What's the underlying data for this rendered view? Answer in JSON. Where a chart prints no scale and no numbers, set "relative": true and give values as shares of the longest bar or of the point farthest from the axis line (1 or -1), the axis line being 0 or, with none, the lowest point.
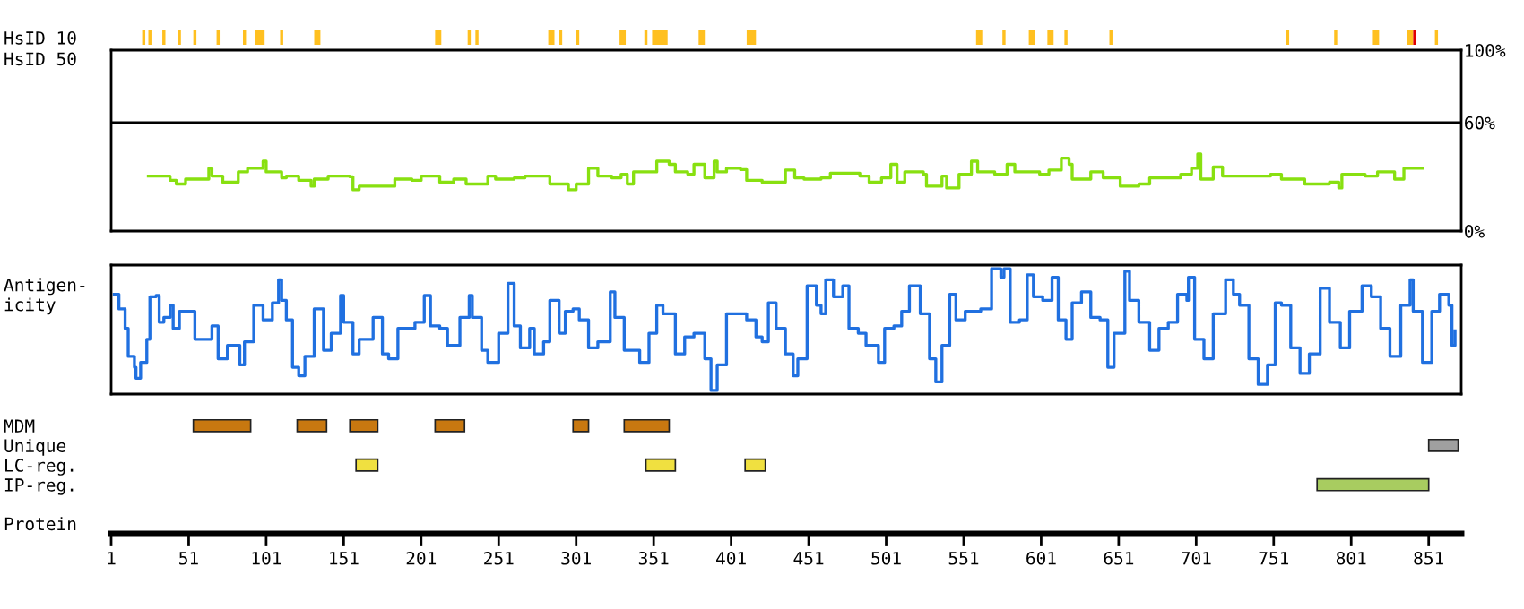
{
  "chart_data": [
    {
      "type": "bar",
      "orientation": "horizontal",
      "xlim": [
        1,
        872
      ],
      "categories": [
        "HsID 10"
      ],
      "series": [
        {
          "base": [
            21
          ],
          "values": [
            2
          ],
          "colors": [
            "#ffc020"
          ]
        },
        {
          "base": [
            25
          ],
          "values": [
            2
          ],
          "colors": [
            "#ffc020"
          ]
        },
        {
          "base": [
            34
          ],
          "values": [
            2
          ],
          "colors": [
            "#ffc020"
          ]
        },
        {
          "base": [
            44
          ],
          "values": [
            2
          ],
          "colors": [
            "#ffc020"
          ]
        },
        {
          "base": [
            54
          ],
          "values": [
            2
          ],
          "colors": [
            "#ffc020"
          ]
        },
        {
          "base": [
            69
          ],
          "values": [
            2
          ],
          "colors": [
            "#ffc020"
          ]
        },
        {
          "base": [
            86
          ],
          "values": [
            2
          ],
          "colors": [
            "#ffc020"
          ]
        },
        {
          "base": [
            94
          ],
          "values": [
            6
          ],
          "colors": [
            "#ffc020"
          ]
        },
        {
          "base": [
            110
          ],
          "values": [
            2
          ],
          "colors": [
            "#ffc020"
          ]
        },
        {
          "base": [
            132
          ],
          "values": [
            4
          ],
          "colors": [
            "#ffc020"
          ]
        },
        {
          "base": [
            210
          ],
          "values": [
            4
          ],
          "colors": [
            "#ffc020"
          ]
        },
        {
          "base": [
            231
          ],
          "values": [
            2
          ],
          "colors": [
            "#ffc020"
          ]
        },
        {
          "base": [
            236
          ],
          "values": [
            2
          ],
          "colors": [
            "#ffc020"
          ]
        },
        {
          "base": [
            283
          ],
          "values": [
            4
          ],
          "colors": [
            "#ffc020"
          ]
        },
        {
          "base": [
            290
          ],
          "values": [
            2
          ],
          "colors": [
            "#ffc020"
          ]
        },
        {
          "base": [
            301
          ],
          "values": [
            2
          ],
          "colors": [
            "#ffc020"
          ]
        },
        {
          "base": [
            329
          ],
          "values": [
            4
          ],
          "colors": [
            "#ffc020"
          ]
        },
        {
          "base": [
            345
          ],
          "values": [
            2
          ],
          "colors": [
            "#ffc020"
          ]
        },
        {
          "base": [
            350
          ],
          "values": [
            10
          ],
          "colors": [
            "#ffc020"
          ]
        },
        {
          "base": [
            380
          ],
          "values": [
            4
          ],
          "colors": [
            "#ffc020"
          ]
        },
        {
          "base": [
            411
          ],
          "values": [
            6
          ],
          "colors": [
            "#ffc020"
          ]
        },
        {
          "base": [
            559
          ],
          "values": [
            4
          ],
          "colors": [
            "#ffc020"
          ]
        },
        {
          "base": [
            576
          ],
          "values": [
            2
          ],
          "colors": [
            "#ffc020"
          ]
        },
        {
          "base": [
            593
          ],
          "values": [
            4
          ],
          "colors": [
            "#ffc020"
          ]
        },
        {
          "base": [
            605
          ],
          "values": [
            4
          ],
          "colors": [
            "#ffc020"
          ]
        },
        {
          "base": [
            616
          ],
          "values": [
            2
          ],
          "colors": [
            "#ffc020"
          ]
        },
        {
          "base": [
            645
          ],
          "values": [
            2
          ],
          "colors": [
            "#ffc020"
          ]
        },
        {
          "base": [
            759
          ],
          "values": [
            2
          ],
          "colors": [
            "#ffc020"
          ]
        },
        {
          "base": [
            790
          ],
          "values": [
            2
          ],
          "colors": [
            "#ffc020"
          ]
        },
        {
          "base": [
            815
          ],
          "values": [
            4
          ],
          "colors": [
            "#ffc020"
          ]
        },
        {
          "base": [
            837
          ],
          "values": [
            4
          ],
          "colors": [
            "#ffc020"
          ]
        },
        {
          "base": [
            841
          ],
          "values": [
            2
          ],
          "colors": [
            "#e00000"
          ]
        },
        {
          "base": [
            855
          ],
          "values": [
            2
          ],
          "colors": [
            "#ffc020"
          ]
        }
      ]
    },
    {
      "type": "step",
      "ylabel": "HsID 50",
      "xlim": [
        1,
        872
      ],
      "ylim": [
        0,
        100
      ],
      "tick_labels": "y",
      "yticks": [
        {
          "value": 0,
          "label": "0%"
        },
        {
          "value": 60,
          "label": "60%"
        },
        {
          "value": 100,
          "label": "100%"
        }
      ],
      "ref_lines": [
        {
          "axis": "y",
          "value": 60,
          "color": "#000000"
        }
      ],
      "series": [
        {
          "color": "#88e010",
          "x": [
            25,
            39,
            43,
            49,
            62,
            64,
            66,
            73,
            83,
            89,
            99,
            101,
            111,
            114,
            122,
            130,
            132,
            141,
            155,
            157,
            161,
            172,
            184,
            195,
            201,
            207,
            213,
            222,
            230,
            244,
            249,
            261,
            268,
            280,
            284,
            296,
            301,
            309,
            315,
            324,
            330,
            334,
            338,
            351,
            353,
            361,
            365,
            373,
            377,
            384,
            390,
            392,
            398,
            407,
            411,
            421,
            436,
            442,
            448,
            459,
            465,
            484,
            490,
            498,
            504,
            508,
            513,
            525,
            527,
            537,
            540,
            548,
            556,
            560,
            571,
            579,
            584,
            600,
            606,
            614,
            619,
            621,
            633,
            641,
            652,
            664,
            671,
            691,
            698,
            702,
            704,
            712,
            718,
            741,
            749,
            756,
            771,
            787,
            793,
            795,
            810,
            818,
            829,
            835,
            847
          ],
          "values": [
            30.4,
            28.0,
            26.0,
            28.7,
            28.7,
            34.7,
            30.4,
            27.0,
            32.7,
            34.7,
            38.6,
            32.7,
            29.4,
            30.4,
            28.0,
            24.8,
            28.7,
            30.4,
            30.0,
            22.8,
            24.8,
            24.8,
            28.7,
            28.0,
            30.4,
            30.4,
            27.0,
            28.7,
            26.0,
            30.4,
            28.7,
            29.4,
            30.4,
            30.4,
            26.0,
            22.8,
            26.0,
            34.7,
            30.4,
            29.4,
            31.4,
            26.0,
            32.7,
            32.7,
            38.6,
            36.9,
            32.7,
            31.4,
            36.9,
            29.4,
            38.6,
            32.7,
            34.7,
            34.0,
            28.0,
            27.0,
            33.7,
            29.4,
            28.7,
            29.4,
            32.0,
            30.4,
            27.0,
            29.4,
            36.9,
            27.0,
            32.7,
            31.4,
            24.8,
            30.4,
            23.8,
            31.4,
            38.6,
            32.7,
            31.4,
            36.9,
            32.7,
            31.4,
            33.7,
            40.3,
            36.9,
            28.7,
            32.7,
            29.4,
            24.8,
            26.0,
            29.4,
            31.4,
            34.7,
            42.6,
            28.7,
            35.4,
            30.4,
            30.4,
            31.4,
            28.7,
            26.0,
            27.0,
            23.8,
            31.4,
            30.4,
            32.7,
            28.7,
            34.7,
            34.7
          ]
        }
      ]
    },
    {
      "type": "step",
      "ylabel": "Antigen-\nicity",
      "relative": true,
      "xlim": [
        1,
        872
      ],
      "tick_labels": false,
      "series": [
        {
          "color": "#2070e0",
          "x": [
            3,
            6,
            10,
            12,
            16,
            17,
            20,
            24,
            26,
            30,
            32,
            35,
            39,
            41,
            45,
            51,
            55,
            60,
            66,
            70,
            76,
            84,
            87,
            93,
            99,
            105,
            109,
            111,
            114,
            118,
            122,
            126,
            132,
            138,
            143,
            149,
            151,
            157,
            161,
            170,
            176,
            180,
            186,
            191,
            197,
            203,
            207,
            213,
            218,
            226,
            232,
            234,
            240,
            244,
            251,
            257,
            261,
            265,
            271,
            274,
            280,
            284,
            290,
            294,
            299,
            303,
            309,
            315,
            323,
            326,
            332,
            338,
            342,
            348,
            353,
            357,
            365,
            371,
            377,
            384,
            388,
            392,
            398,
            404,
            411,
            417,
            421,
            425,
            430,
            436,
            441,
            444,
            450,
            456,
            459,
            462,
            467,
            473,
            477,
            483,
            488,
            496,
            500,
            506,
            511,
            516,
            523,
            529,
            533,
            537,
            542,
            546,
            552,
            562,
            569,
            575,
            577,
            581,
            587,
            592,
            596,
            602,
            608,
            612,
            617,
            621,
            627,
            633,
            639,
            644,
            648,
            655,
            658,
            664,
            671,
            677,
            683,
            689,
            695,
            696,
            700,
            706,
            712,
            720,
            725,
            729,
            735,
            741,
            747,
            752,
            756,
            762,
            768,
            774,
            781,
            787,
            794,
            800,
            808,
            814,
            820,
            826,
            833,
            839,
            841,
            847,
            853,
            858,
            864,
            866,
            868
          ],
          "values": [
            0.79,
            0.67,
            0.51,
            0.28,
            0.19,
            0.1,
            0.23,
            0.42,
            0.77,
            0.78,
            0.56,
            0.6,
            0.7,
            0.51,
            0.65,
            0.65,
            0.42,
            0.42,
            0.53,
            0.26,
            0.37,
            0.21,
            0.4,
            0.7,
            0.58,
            0.72,
            0.91,
            0.74,
            0.58,
            0.19,
            0.12,
            0.28,
            0.67,
            0.33,
            0.47,
            0.78,
            0.56,
            0.3,
            0.42,
            0.6,
            0.3,
            0.26,
            0.51,
            0.51,
            0.56,
            0.78,
            0.53,
            0.51,
            0.37,
            0.6,
            0.78,
            0.6,
            0.33,
            0.23,
            0.47,
            0.88,
            0.53,
            0.35,
            0.51,
            0.3,
            0.4,
            0.74,
            0.47,
            0.65,
            0.67,
            0.58,
            0.35,
            0.4,
            0.81,
            0.6,
            0.33,
            0.33,
            0.23,
            0.47,
            0.7,
            0.63,
            0.3,
            0.44,
            0.47,
            0.26,
            0.0,
            0.21,
            0.63,
            0.63,
            0.58,
            0.44,
            0.4,
            0.72,
            0.51,
            0.3,
            0.12,
            0.26,
            0.86,
            0.7,
            0.63,
            0.91,
            0.77,
            0.86,
            0.51,
            0.47,
            0.37,
            0.23,
            0.51,
            0.53,
            0.65,
            0.86,
            0.63,
            0.26,
            0.07,
            0.37,
            0.79,
            0.58,
            0.65,
            0.67,
            1.0,
            0.93,
            1.0,
            0.56,
            0.58,
            0.95,
            0.77,
            0.74,
            0.93,
            0.58,
            0.42,
            0.72,
            0.81,
            0.6,
            0.58,
            0.19,
            0.47,
            0.98,
            0.74,
            0.56,
            0.33,
            0.51,
            0.56,
            0.79,
            0.74,
            0.93,
            0.42,
            0.26,
            0.63,
            0.91,
            0.79,
            0.7,
            0.26,
            0.05,
            0.21,
            0.72,
            0.7,
            0.35,
            0.14,
            0.3,
            0.84,
            0.56,
            0.35,
            0.65,
            0.86,
            0.77,
            0.51,
            0.28,
            0.7,
            0.91,
            0.65,
            0.23,
            0.65,
            0.79,
            0.7,
            0.37,
            0.49
          ]
        }
      ]
    },
    {
      "type": "bar",
      "orientation": "horizontal",
      "xlabel": "Protein",
      "xlim": [
        1,
        872
      ],
      "xticks": [
        1,
        51,
        101,
        151,
        201,
        251,
        301,
        351,
        401,
        451,
        501,
        551,
        601,
        651,
        701,
        751,
        801,
        851
      ],
      "categories": [
        "MDM",
        "Unique",
        "LC-reg.",
        "IP-reg."
      ],
      "series": [
        {
          "base": [
            54,
            851,
            159,
            779
          ],
          "values": [
            37,
            19,
            14,
            72
          ],
          "colors": [
            "#c87810",
            "#a0a0a0",
            "#f0e040",
            "#a8cc60"
          ]
        },
        {
          "base": [
            121,
            null,
            346,
            null
          ],
          "values": [
            19,
            null,
            19,
            null
          ],
          "colors": [
            "#c87810",
            null,
            "#f0e040",
            null
          ]
        },
        {
          "base": [
            155,
            null,
            410,
            null
          ],
          "values": [
            18,
            null,
            13,
            null
          ],
          "colors": [
            "#c87810",
            null,
            "#f0e040",
            null
          ]
        },
        {
          "base": [
            210,
            null,
            null,
            null
          ],
          "values": [
            19,
            null,
            null,
            null
          ],
          "colors": [
            "#c87810",
            null,
            null,
            null
          ]
        },
        {
          "base": [
            299,
            null,
            null,
            null
          ],
          "values": [
            10,
            null,
            null,
            null
          ],
          "colors": [
            "#c87810",
            null,
            null,
            null
          ]
        },
        {
          "base": [
            332,
            null,
            null,
            null
          ],
          "values": [
            29,
            null,
            null,
            null
          ],
          "colors": [
            "#c87810",
            null,
            null,
            null
          ]
        }
      ]
    }
  ]
}
